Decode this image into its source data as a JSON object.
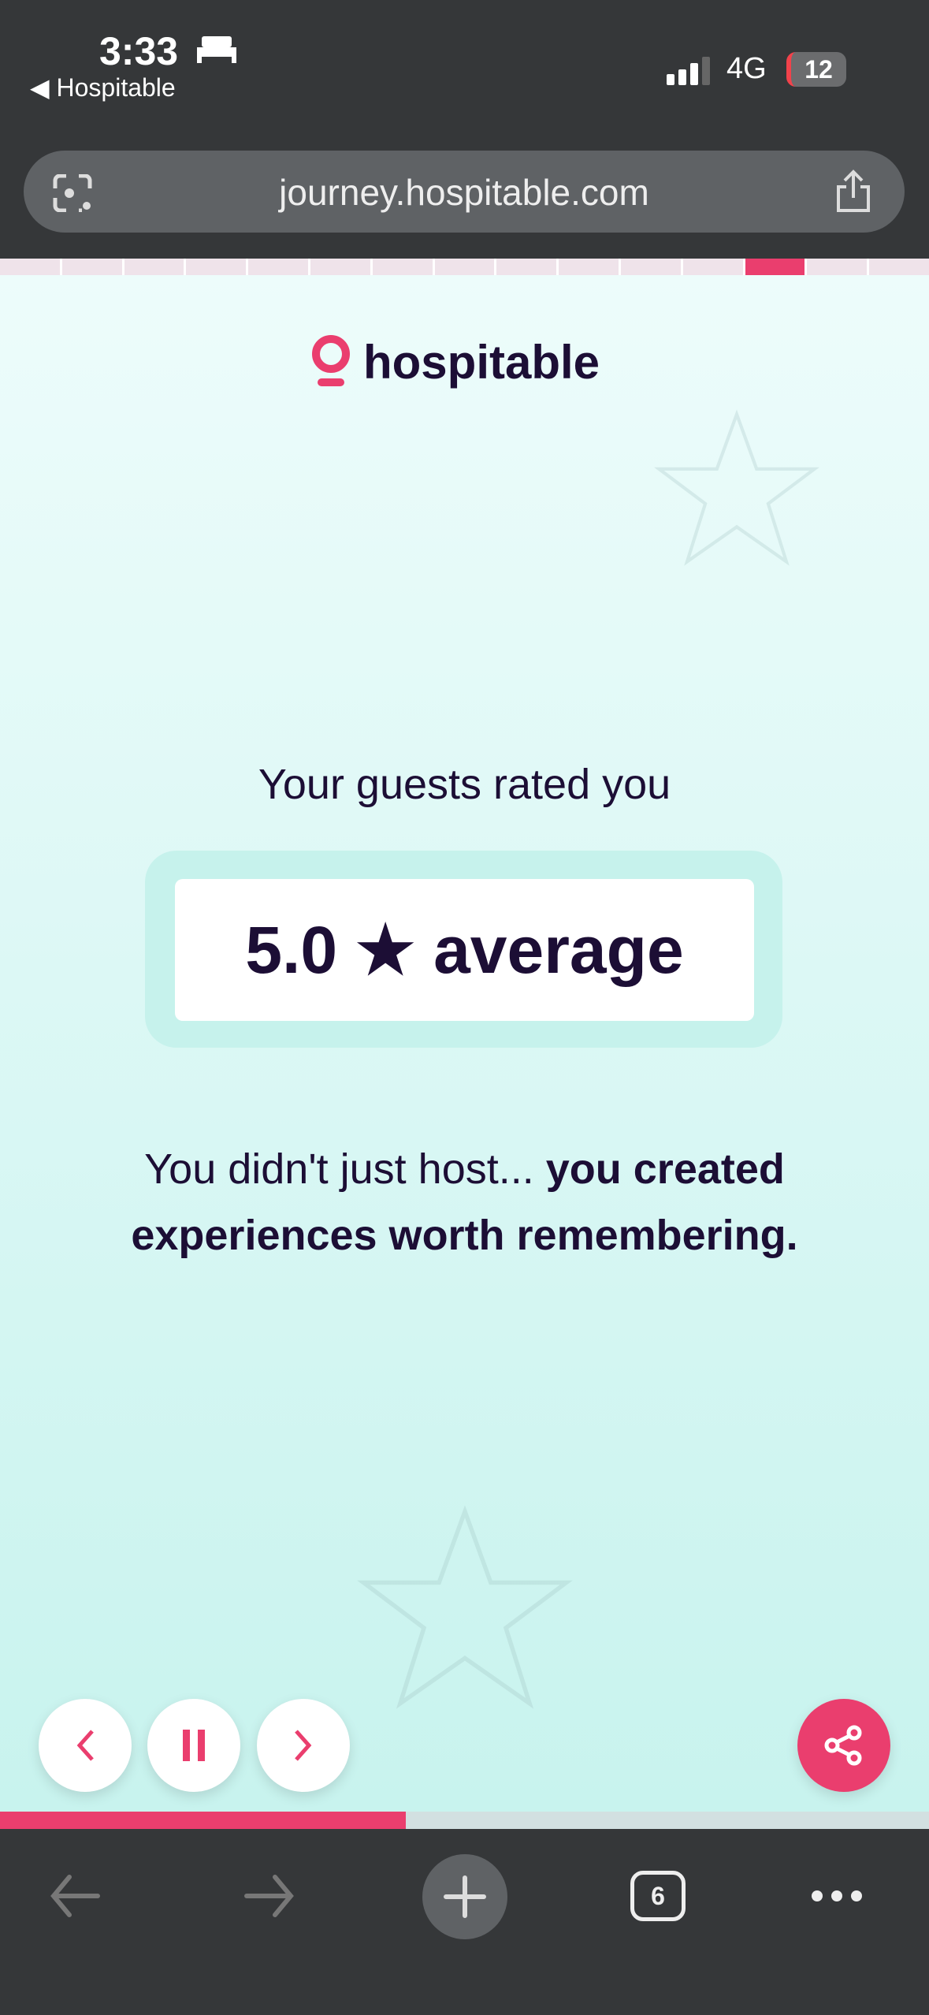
{
  "status_bar": {
    "time": "3:33",
    "back_app": "Hospitable",
    "network": "4G",
    "battery": "12"
  },
  "browser": {
    "url": "journey.hospitable.com",
    "tab_count": "6"
  },
  "story": {
    "segments_total": 15,
    "active_segment": 13,
    "progress_percent": 43.7
  },
  "brand": {
    "name": "hospitable",
    "accent": "#ea3e6e",
    "text_color": "#1c0e35"
  },
  "main": {
    "lead": "Your guests rated you",
    "rating": "5.0 ★ average",
    "message_plain": "You didn't just host... ",
    "message_bold": "you created experiences worth remembering."
  },
  "icons": {
    "prev": "chevron-left-icon",
    "pause": "pause-icon",
    "next": "chevron-right-icon",
    "share": "share-icon"
  }
}
